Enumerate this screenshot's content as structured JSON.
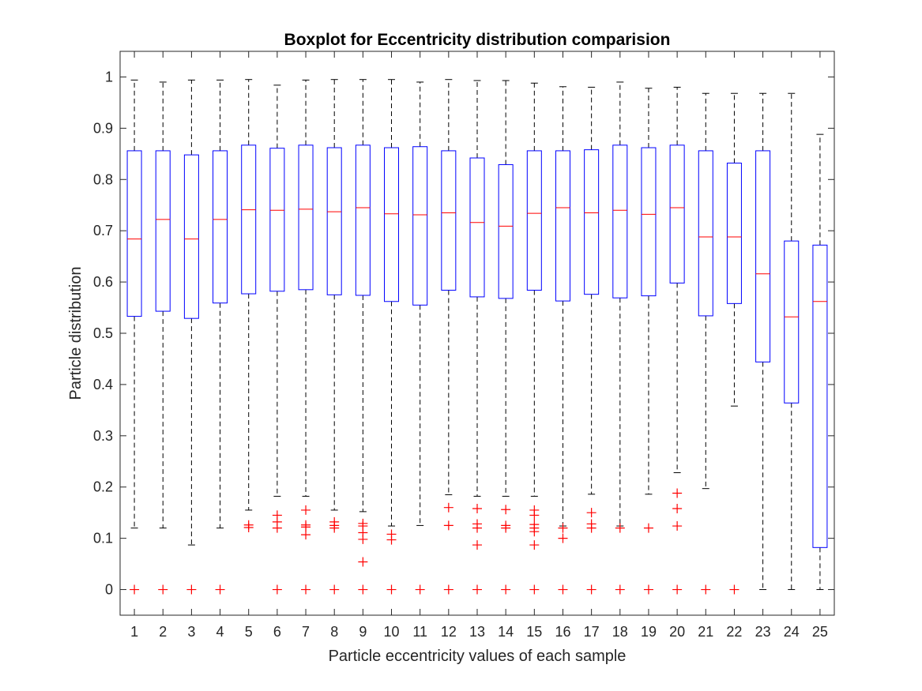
{
  "chart_data": {
    "type": "boxplot",
    "title": "Boxplot for Eccentricity distribution comparision",
    "xlabel": "Particle eccentricity values of each sample",
    "ylabel": "Particle distribution",
    "categories": [
      "1",
      "2",
      "3",
      "4",
      "5",
      "6",
      "7",
      "8",
      "9",
      "10",
      "11",
      "12",
      "13",
      "14",
      "15",
      "16",
      "17",
      "18",
      "19",
      "20",
      "21",
      "22",
      "23",
      "24",
      "25"
    ],
    "ylim": [
      -0.05,
      1.05
    ],
    "yticks": [
      0,
      0.1,
      0.2,
      0.3,
      0.4,
      0.5,
      0.6,
      0.7,
      0.8,
      0.9,
      1
    ],
    "ytick_labels": [
      "0",
      "0.1",
      "0.2",
      "0.3",
      "0.4",
      "0.5",
      "0.6",
      "0.7",
      "0.8",
      "0.9",
      "1"
    ],
    "grid": false,
    "colors": {
      "box": "#0000ff",
      "median": "#ff0000",
      "whisker": "#000000",
      "outlier": "#ff0000",
      "axes": "#262626"
    },
    "boxes": [
      {
        "whisker_low": 0.12,
        "q1": 0.533,
        "median": 0.684,
        "q3": 0.856,
        "whisker_high": 0.994,
        "outliers": [
          0
        ]
      },
      {
        "whisker_low": 0.12,
        "q1": 0.543,
        "median": 0.722,
        "q3": 0.856,
        "whisker_high": 0.99,
        "outliers": [
          0
        ]
      },
      {
        "whisker_low": 0.087,
        "q1": 0.529,
        "median": 0.684,
        "q3": 0.848,
        "whisker_high": 0.994,
        "outliers": [
          0
        ]
      },
      {
        "whisker_low": 0.12,
        "q1": 0.559,
        "median": 0.722,
        "q3": 0.856,
        "whisker_high": 0.994,
        "outliers": [
          0
        ]
      },
      {
        "whisker_low": 0.155,
        "q1": 0.577,
        "median": 0.741,
        "q3": 0.867,
        "whisker_high": 0.995,
        "outliers": [
          0.121,
          0.126
        ]
      },
      {
        "whisker_low": 0.182,
        "q1": 0.582,
        "median": 0.74,
        "q3": 0.861,
        "whisker_high": 0.984,
        "outliers": [
          0,
          0.12,
          0.132,
          0.145
        ]
      },
      {
        "whisker_low": 0.182,
        "q1": 0.585,
        "median": 0.742,
        "q3": 0.867,
        "whisker_high": 0.994,
        "outliers": [
          0,
          0.107,
          0.122,
          0.126,
          0.155
        ]
      },
      {
        "whisker_low": 0.155,
        "q1": 0.575,
        "median": 0.737,
        "q3": 0.862,
        "whisker_high": 0.995,
        "outliers": [
          0,
          0.12,
          0.125,
          0.132
        ]
      },
      {
        "whisker_low": 0.152,
        "q1": 0.574,
        "median": 0.745,
        "q3": 0.867,
        "whisker_high": 0.995,
        "outliers": [
          0,
          0.054,
          0.098,
          0.111,
          0.124,
          0.129
        ]
      },
      {
        "whisker_low": 0.124,
        "q1": 0.562,
        "median": 0.733,
        "q3": 0.862,
        "whisker_high": 0.995,
        "outliers": [
          0,
          0.097,
          0.108
        ]
      },
      {
        "whisker_low": 0.125,
        "q1": 0.555,
        "median": 0.731,
        "q3": 0.864,
        "whisker_high": 0.99,
        "outliers": [
          0
        ]
      },
      {
        "whisker_low": 0.185,
        "q1": 0.584,
        "median": 0.735,
        "q3": 0.856,
        "whisker_high": 0.995,
        "outliers": [
          0,
          0.125,
          0.16
        ]
      },
      {
        "whisker_low": 0.182,
        "q1": 0.571,
        "median": 0.716,
        "q3": 0.842,
        "whisker_high": 0.993,
        "outliers": [
          0,
          0.087,
          0.12,
          0.128,
          0.158
        ]
      },
      {
        "whisker_low": 0.182,
        "q1": 0.568,
        "median": 0.709,
        "q3": 0.829,
        "whisker_high": 0.993,
        "outliers": [
          0,
          0.12,
          0.125,
          0.156
        ]
      },
      {
        "whisker_low": 0.182,
        "q1": 0.584,
        "median": 0.734,
        "q3": 0.856,
        "whisker_high": 0.988,
        "outliers": [
          0,
          0.087,
          0.113,
          0.12,
          0.127,
          0.145,
          0.155
        ]
      },
      {
        "whisker_low": 0.124,
        "q1": 0.563,
        "median": 0.745,
        "q3": 0.856,
        "whisker_high": 0.981,
        "outliers": [
          0,
          0.1,
          0.12
        ]
      },
      {
        "whisker_low": 0.186,
        "q1": 0.576,
        "median": 0.735,
        "q3": 0.858,
        "whisker_high": 0.98,
        "outliers": [
          0,
          0.12,
          0.128,
          0.15
        ]
      },
      {
        "whisker_low": 0.124,
        "q1": 0.569,
        "median": 0.74,
        "q3": 0.867,
        "whisker_high": 0.99,
        "outliers": [
          0,
          0.12
        ]
      },
      {
        "whisker_low": 0.186,
        "q1": 0.573,
        "median": 0.732,
        "q3": 0.862,
        "whisker_high": 0.978,
        "outliers": [
          0,
          0.12
        ]
      },
      {
        "whisker_low": 0.228,
        "q1": 0.598,
        "median": 0.745,
        "q3": 0.867,
        "whisker_high": 0.98,
        "outliers": [
          0,
          0.124,
          0.158,
          0.188
        ]
      },
      {
        "whisker_low": 0.197,
        "q1": 0.534,
        "median": 0.688,
        "q3": 0.856,
        "whisker_high": 0.968,
        "outliers": [
          0
        ]
      },
      {
        "whisker_low": 0.358,
        "q1": 0.558,
        "median": 0.688,
        "q3": 0.832,
        "whisker_high": 0.968,
        "outliers": [
          0
        ]
      },
      {
        "whisker_low": 0,
        "q1": 0.444,
        "median": 0.616,
        "q3": 0.856,
        "whisker_high": 0.968,
        "outliers": []
      },
      {
        "whisker_low": 0,
        "q1": 0.364,
        "median": 0.532,
        "q3": 0.68,
        "whisker_high": 0.968,
        "outliers": []
      },
      {
        "whisker_low": 0,
        "q1": 0.082,
        "median": 0.562,
        "q3": 0.672,
        "whisker_high": 0.888,
        "outliers": []
      }
    ]
  }
}
